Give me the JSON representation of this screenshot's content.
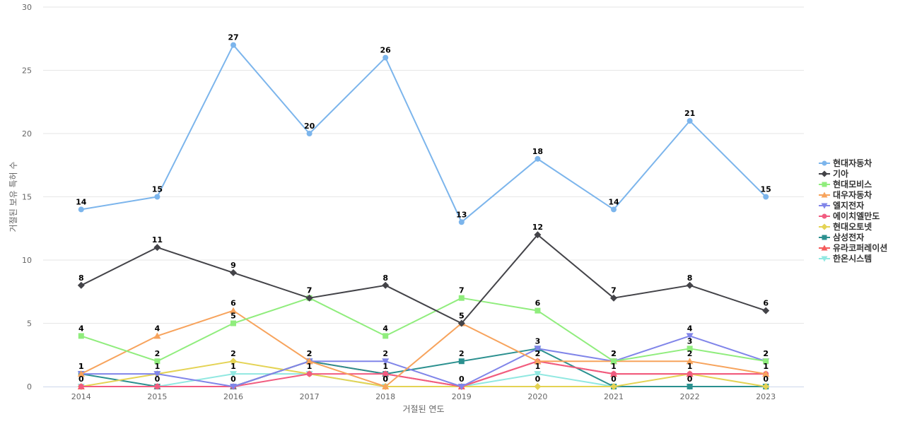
{
  "chart_data": {
    "type": "line",
    "title": "",
    "xlabel": "거절된 연도",
    "ylabel": "거절된 보유 특허 수",
    "ylim": [
      0,
      30
    ],
    "yticks": [
      0,
      5,
      10,
      15,
      20,
      25,
      30
    ],
    "categories": [
      "2014",
      "2015",
      "2016",
      "2017",
      "2018",
      "2019",
      "2020",
      "2021",
      "2022",
      "2023"
    ],
    "grid": true,
    "legend": "right",
    "series": [
      {
        "name": "현대자동차",
        "color": "#7cb5ec",
        "marker": "circle",
        "labels": true,
        "values": [
          14,
          15,
          27,
          20,
          26,
          13,
          18,
          14,
          21,
          15
        ]
      },
      {
        "name": "기아",
        "color": "#434348",
        "marker": "diamond",
        "labels": true,
        "values": [
          8,
          11,
          9,
          7,
          8,
          5,
          12,
          7,
          8,
          6
        ]
      },
      {
        "name": "현대모비스",
        "color": "#90ed7d",
        "marker": "square",
        "labels": true,
        "values": [
          4,
          2,
          5,
          7,
          4,
          7,
          6,
          2,
          3,
          2
        ]
      },
      {
        "name": "대우자동차",
        "color": "#f7a35c",
        "marker": "triangle",
        "labels": true,
        "values": [
          1,
          4,
          6,
          2,
          0,
          5,
          2,
          2,
          2,
          1
        ]
      },
      {
        "name": "엘지전자",
        "color": "#8085e9",
        "marker": "triangle-down",
        "labels": false,
        "values": [
          1,
          1,
          0,
          2,
          2,
          0,
          3,
          2,
          4,
          2
        ]
      },
      {
        "name": "에이치엘만도",
        "color": "#f15c80",
        "marker": "circle",
        "labels": false,
        "values": [
          0,
          0,
          0,
          1,
          1,
          0,
          2,
          1,
          1,
          1
        ]
      },
      {
        "name": "현대오토넷",
        "color": "#e4d354",
        "marker": "diamond",
        "labels": false,
        "values": [
          0,
          1,
          2,
          1,
          0,
          0,
          0,
          0,
          1,
          0
        ]
      },
      {
        "name": "삼성전자",
        "color": "#2b908f",
        "marker": "square",
        "labels": false,
        "values": [
          1,
          0,
          0,
          2,
          1,
          2,
          3,
          0,
          0,
          0
        ]
      },
      {
        "name": "유라코퍼레이션",
        "color": "#f45b5b",
        "marker": "triangle",
        "labels": false,
        "values": [
          0,
          0,
          0,
          2,
          1,
          0,
          2,
          1,
          1,
          1
        ]
      },
      {
        "name": "한온시스템",
        "color": "#91e8e1",
        "marker": "triangle-down",
        "labels": false,
        "values": [
          0,
          0,
          1,
          1,
          0,
          0,
          1,
          0,
          0,
          0
        ]
      }
    ],
    "annotations": [
      {
        "x": "2014",
        "series": "엘지전자",
        "text": "1"
      },
      {
        "x": "2014",
        "series": "에이치엘만도",
        "text": "0"
      },
      {
        "x": "2015",
        "series": "현대오토넷",
        "text": "1"
      },
      {
        "x": "2015",
        "series": "에이치엘만도",
        "text": "0"
      },
      {
        "x": "2016",
        "series": "현대오토넷",
        "text": "2"
      },
      {
        "x": "2016",
        "series": "한온시스템",
        "text": "1"
      },
      {
        "x": "2016",
        "series": "에이치엘만도",
        "text": "0"
      },
      {
        "x": "2017",
        "series": "엘지전자",
        "text": "2"
      },
      {
        "x": "2017",
        "series": "에이치엘만도",
        "text": "1"
      },
      {
        "x": "2018",
        "series": "엘지전자",
        "text": "2"
      },
      {
        "x": "2018",
        "series": "에이치엘만도",
        "text": "1"
      },
      {
        "x": "2018",
        "series": "현대오토넷",
        "text": "0"
      },
      {
        "x": "2019",
        "series": "삼성전자",
        "text": "2"
      },
      {
        "x": "2019",
        "series": "에이치엘만도",
        "text": "0"
      },
      {
        "x": "2020",
        "series": "엘지전자",
        "text": "3"
      },
      {
        "x": "2020",
        "series": "에이치엘만도",
        "text": "2"
      },
      {
        "x": "2020",
        "series": "한온시스템",
        "text": "1"
      },
      {
        "x": "2020",
        "series": "현대오토넷",
        "text": "0"
      },
      {
        "x": "2021",
        "series": "엘지전자",
        "text": "2"
      },
      {
        "x": "2021",
        "series": "에이치엘만도",
        "text": "1"
      },
      {
        "x": "2021",
        "series": "현대오토넷",
        "text": "0"
      },
      {
        "x": "2022",
        "series": "엘지전자",
        "text": "4"
      },
      {
        "x": "2022",
        "series": "에이치엘만도",
        "text": "1"
      },
      {
        "x": "2022",
        "series": "한온시스템",
        "text": "0"
      },
      {
        "x": "2023",
        "series": "엘지전자",
        "text": "2"
      },
      {
        "x": "2023",
        "series": "에이치엘만도",
        "text": "1"
      },
      {
        "x": "2023",
        "series": "현대오토넷",
        "text": "0"
      }
    ]
  }
}
